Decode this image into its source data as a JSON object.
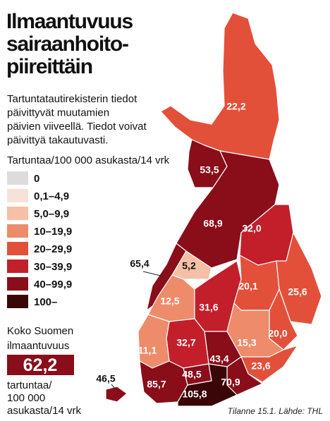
{
  "title_lines": [
    "Ilmaantuvuus",
    "sairaanhoito-",
    "piireittäin"
  ],
  "intro_lines": [
    "Tartuntatautirekisterin tiedot",
    "päivittyvät muutamien",
    "päivien viiveellä. Tiedot voivat",
    "päivittyä takautuvasti."
  ],
  "legend": {
    "title": "Tartuntaa/100 000 asukasta/14 vrk",
    "items": [
      {
        "label": "0",
        "min": 0,
        "color": "#dcdcdc"
      },
      {
        "label": "0,1–4,9",
        "min": 0.1,
        "color": "#f6e2d8"
      },
      {
        "label": "5,0–9,9",
        "min": 5,
        "color": "#f5c0a6"
      },
      {
        "label": "10–19,9",
        "min": 10,
        "color": "#ee8b6b"
      },
      {
        "label": "20–29,9",
        "min": 20,
        "color": "#e2503a"
      },
      {
        "label": "30–39,9",
        "min": 30,
        "color": "#c21f2b"
      },
      {
        "label": "40–99,9",
        "min": 40,
        "color": "#8a0d1a"
      },
      {
        "label": "100–",
        "min": 100,
        "color": "#3b0608"
      }
    ]
  },
  "national": {
    "lines": [
      "Koko Suomen",
      "ilmaantuvuus"
    ],
    "value": 62.2,
    "value_label": "62,2",
    "unit_lines": [
      "tartuntaa/",
      "100 000",
      "asukasta/14 vrk"
    ]
  },
  "regions": [
    {
      "value": 22.2,
      "label": "22,2"
    },
    {
      "value": 53.5,
      "label": "53,5"
    },
    {
      "value": 68.9,
      "label": "68,9"
    },
    {
      "value": 32.0,
      "label": "32,0"
    },
    {
      "value": 65.4,
      "label": "65,4"
    },
    {
      "value": 5.2,
      "label": "5,2"
    },
    {
      "value": 12.5,
      "label": "12,5"
    },
    {
      "value": 31.6,
      "label": "31,6"
    },
    {
      "value": 20.1,
      "label": "20,1"
    },
    {
      "value": 25.6,
      "label": "25,6"
    },
    {
      "value": 20.0,
      "label": "20,0"
    },
    {
      "value": 15.3,
      "label": "15,3"
    },
    {
      "value": 23.6,
      "label": "23,6"
    },
    {
      "value": 70.9,
      "label": "70,9"
    },
    {
      "value": 43.4,
      "label": "43,4"
    },
    {
      "value": 32.7,
      "label": "32,7"
    },
    {
      "value": 11.1,
      "label": "11,1"
    },
    {
      "value": 48.5,
      "label": "48,5"
    },
    {
      "value": 85.7,
      "label": "85,7"
    },
    {
      "value": 105.8,
      "label": "105,8"
    },
    {
      "value": 46.5,
      "label": "46,5"
    }
  ],
  "source": "Tilanne 15.1. Lähde: THL"
}
